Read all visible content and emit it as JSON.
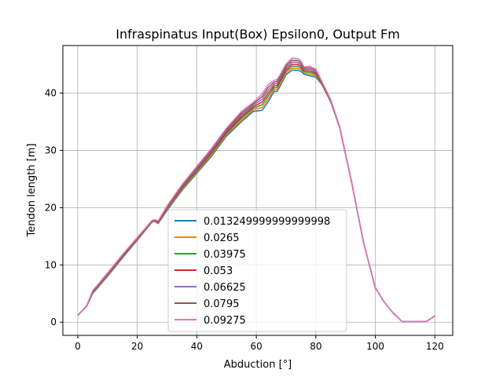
{
  "chart_data": {
    "type": "line",
    "title": "Infraspinatus Input(Box) Epsilon0, Output Fm",
    "xlabel": "Abduction [°]",
    "ylabel": "Tendon length [m]",
    "xlim": [
      -5,
      126
    ],
    "ylim": [
      -2.3,
      48.3
    ],
    "xticks": [
      0,
      20,
      40,
      60,
      80,
      100,
      120
    ],
    "yticks": [
      0,
      10,
      20,
      30,
      40
    ],
    "grid": true,
    "legend_position": "lower-center",
    "x": [
      0,
      3,
      5,
      10,
      15,
      20,
      25,
      26,
      27,
      30,
      35,
      40,
      45,
      50,
      55,
      59,
      62,
      64,
      66,
      67,
      68,
      70,
      72,
      74,
      75,
      76,
      78,
      80,
      82,
      85,
      88,
      92,
      96,
      98,
      100,
      103,
      106,
      109,
      112,
      115,
      117,
      118,
      120
    ],
    "base": [
      1.2,
      2.8,
      5.0,
      8.0,
      11.2,
      14.3,
      17.5,
      17.6,
      17.2,
      19.5,
      23.0,
      26.0,
      29.0,
      32.5,
      35.0,
      36.8,
      37.0,
      38.5,
      40.3,
      40.3,
      41.2,
      43.2,
      44.0,
      44.0,
      43.8,
      43.3,
      43.0,
      42.8,
      41.5,
      38.5,
      34.0,
      24.5,
      14.0,
      10.0,
      6.0,
      3.5,
      1.6,
      0.1,
      0.1,
      0.1,
      0.1,
      0.4,
      1.1
    ],
    "series": [
      {
        "name": "0.013249999999999998",
        "color": "#1f77b4",
        "offset_scale": 0.0
      },
      {
        "name": "0.0265",
        "color": "#ff7f0e",
        "offset_scale": 0.167
      },
      {
        "name": "0.03975",
        "color": "#2ca02c",
        "offset_scale": 0.333
      },
      {
        "name": "0.053",
        "color": "#d62728",
        "offset_scale": 0.5
      },
      {
        "name": "0.06625",
        "color": "#9467bd",
        "offset_scale": 0.667
      },
      {
        "name": "0.0795",
        "color": "#8c564b",
        "offset_scale": 0.833
      },
      {
        "name": "0.09275",
        "color": "#e377c2",
        "offset_scale": 1.0
      }
    ],
    "max_offset": [
      0,
      0.1,
      0.5,
      0.6,
      0.6,
      0.5,
      0.3,
      0.3,
      0.5,
      0.8,
      1.0,
      1.2,
      1.4,
      1.4,
      1.8,
      1.6,
      2.9,
      3.0,
      1.9,
      2.1,
      2.0,
      1.9,
      2.1,
      2.0,
      1.8,
      1.3,
      1.7,
      1.4,
      0.6,
      0.4,
      0.2,
      0.1,
      0,
      0,
      0,
      0,
      0,
      0,
      0,
      0,
      0,
      0,
      0
    ]
  }
}
